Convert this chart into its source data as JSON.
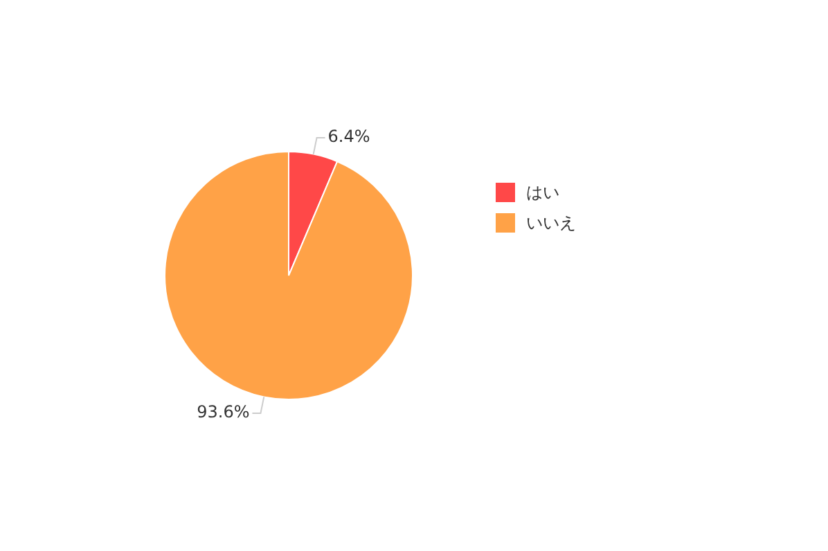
{
  "chart_data": {
    "type": "pie",
    "categories": [
      "はい",
      "いいえ"
    ],
    "values": [
      6.4,
      93.6
    ],
    "colors": [
      "#ff4848",
      "#ffa247"
    ],
    "value_labels": [
      "6.4%",
      "93.6%"
    ],
    "legend": "right"
  }
}
